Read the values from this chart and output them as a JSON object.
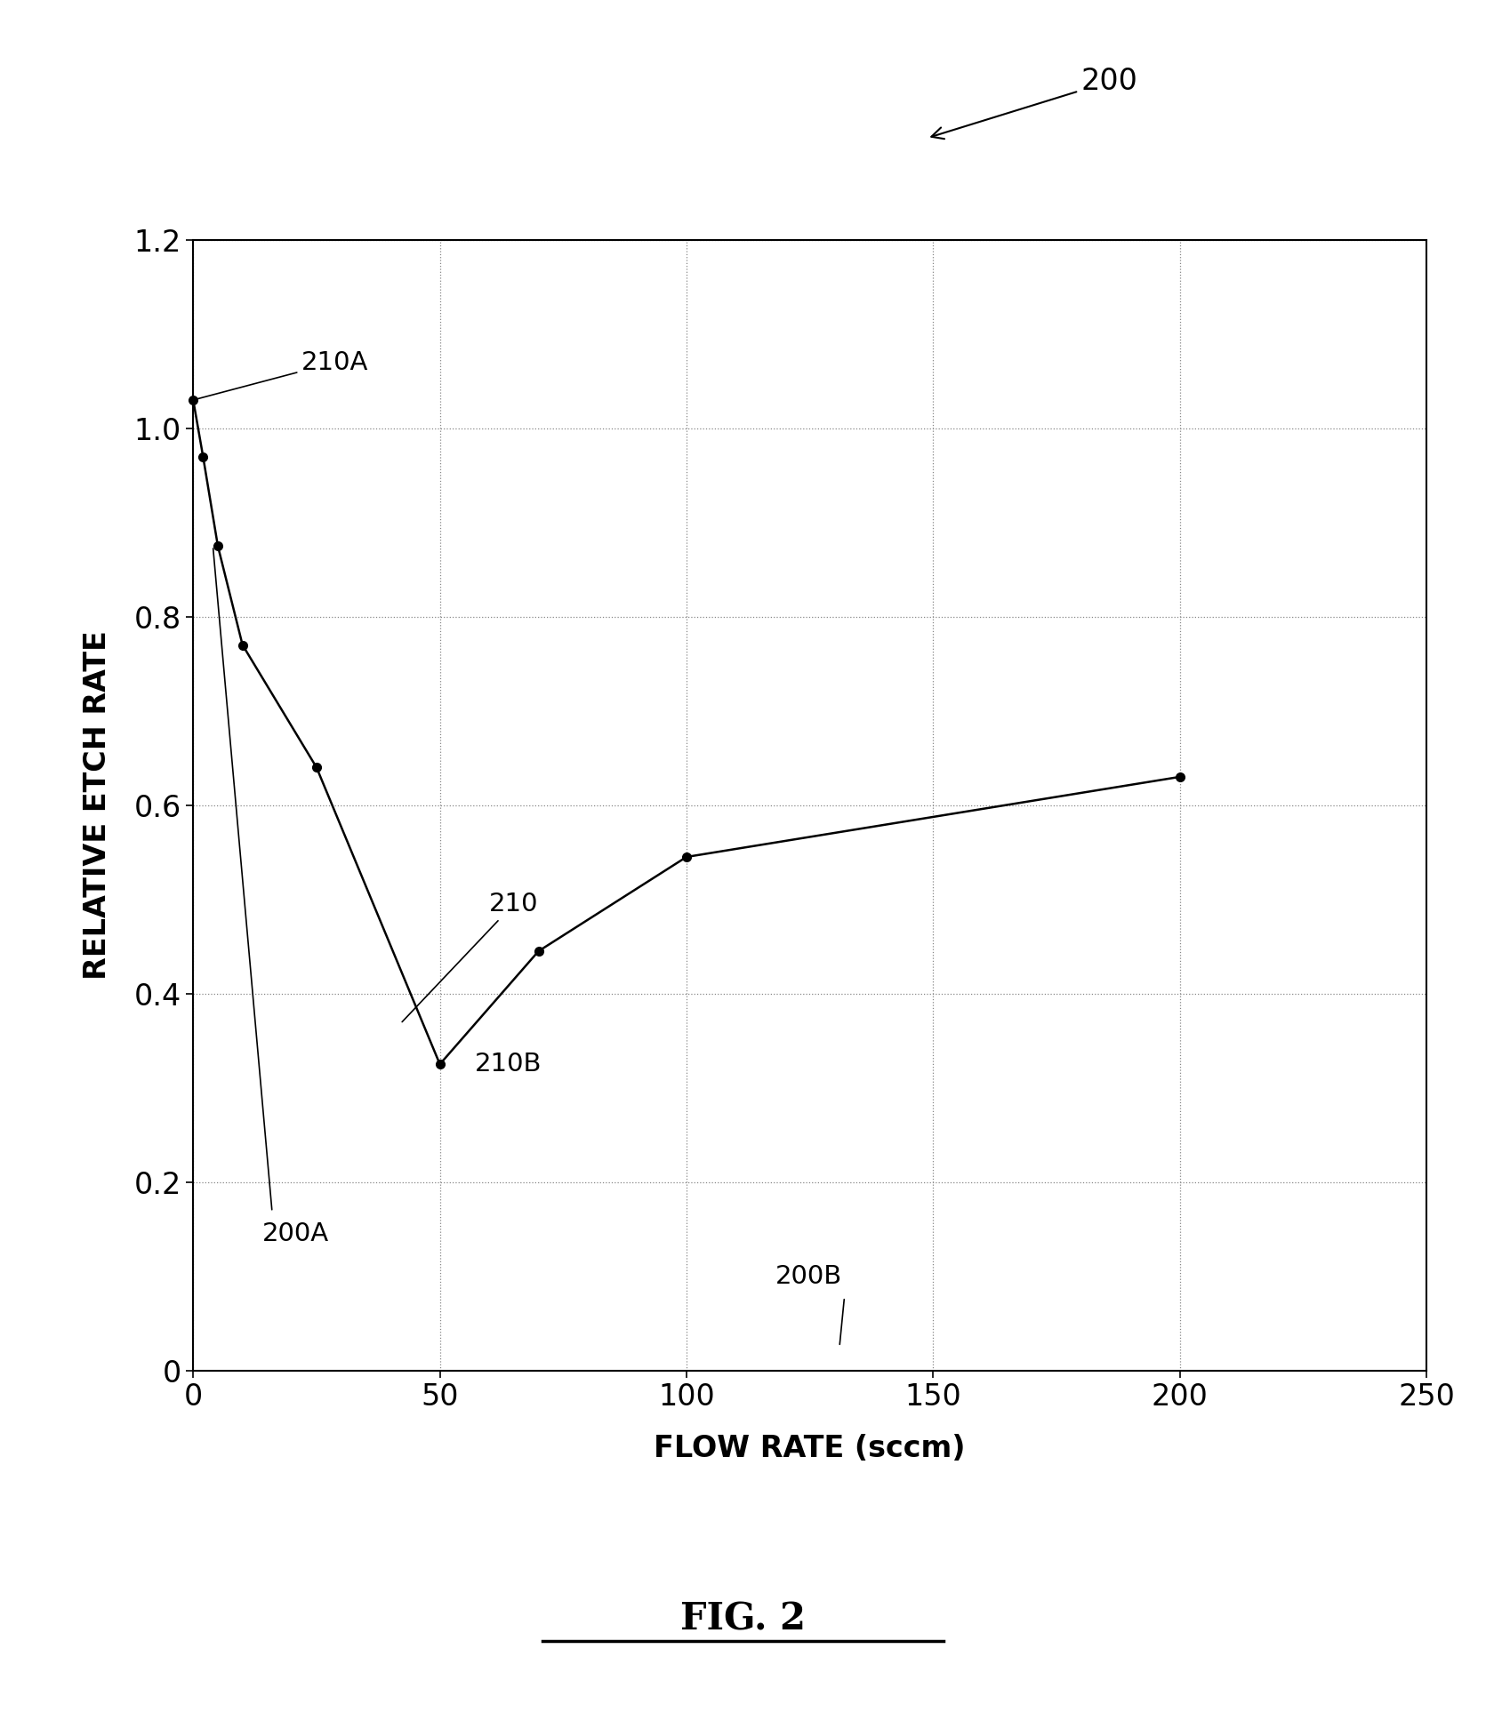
{
  "x": [
    0,
    2,
    5,
    10,
    25,
    50,
    70,
    100,
    200
  ],
  "y": [
    1.03,
    0.97,
    0.875,
    0.77,
    0.64,
    0.325,
    0.445,
    0.545,
    0.63
  ],
  "marker_color": "#000000",
  "line_color": "#000000",
  "background_color": "#ffffff",
  "xlabel": "FLOW RATE (sccm)",
  "ylabel": "RELATIVE ETCH RATE",
  "xlim": [
    0,
    250
  ],
  "ylim": [
    0,
    1.2
  ],
  "xticks": [
    0,
    50,
    100,
    150,
    200,
    250
  ],
  "yticks": [
    0,
    0.2,
    0.4,
    0.6,
    0.8,
    1.0,
    1.2
  ],
  "grid_color": "#888888",
  "fig_caption": "FIG. 2",
  "marker_size": 7,
  "line_width": 1.8,
  "ylabel_fontsize": 24,
  "xlabel_fontsize": 24,
  "tick_fontsize": 24,
  "caption_fontsize": 30,
  "annotation_fontsize": 21
}
